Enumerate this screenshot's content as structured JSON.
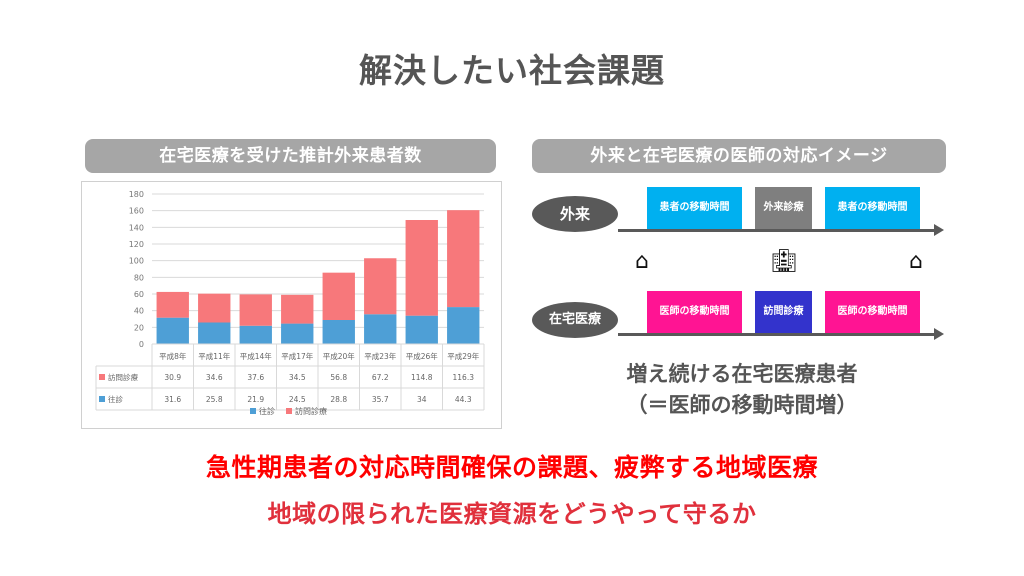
{
  "title": "解決したい社会課題",
  "left_panel": {
    "header": "在宅医療を受けた推計外来患者数"
  },
  "right_panel": {
    "header": "外来と在宅医療の医師の対応イメージ",
    "row_outpatient": {
      "label": "外来",
      "boxes": [
        {
          "text": "患者の移動時間",
          "color": "#00b0f0"
        },
        {
          "text": "外来診療",
          "color": "#7f7f7f"
        },
        {
          "text": "患者の移動時間",
          "color": "#00b0f0"
        }
      ]
    },
    "icons": [
      "house-icon",
      "hospital-icon",
      "house-icon"
    ],
    "row_home": {
      "label": "在宅医療",
      "boxes": [
        {
          "text": "医師の移動時間",
          "color": "#ff1493"
        },
        {
          "text": "訪問診療",
          "color": "#3333cc"
        },
        {
          "text": "医師の移動時間",
          "color": "#ff1493"
        }
      ]
    },
    "caption_line1": "増え続ける在宅医療患者",
    "caption_line2": "（＝医師の移動時間増）"
  },
  "bottom_main": "急性期患者の対応時間確保の課題、疲弊する地域医療",
  "bottom_sub": "地域の限られた医療資源をどうやって守るか",
  "chart_data": {
    "type": "bar",
    "stacked": true,
    "categories": [
      "平成8年",
      "平成11年",
      "平成14年",
      "平成17年",
      "平成20年",
      "平成23年",
      "平成26年",
      "平成29年"
    ],
    "series": [
      {
        "name": "往診",
        "values": [
          31.6,
          25.8,
          21.9,
          24.5,
          28.8,
          35.7,
          34,
          44.3
        ],
        "color": "#4e9fd6"
      },
      {
        "name": "訪問診療",
        "values": [
          30.9,
          34.6,
          37.6,
          34.5,
          56.8,
          67.2,
          114.8,
          116.3
        ],
        "color": "#f7787b"
      }
    ],
    "y_ticks": [
      0,
      20,
      40,
      60,
      80,
      100,
      120,
      140,
      160,
      180
    ],
    "ylim": [
      0,
      180
    ],
    "grid": true,
    "legend": "bottom",
    "data_table": true
  }
}
